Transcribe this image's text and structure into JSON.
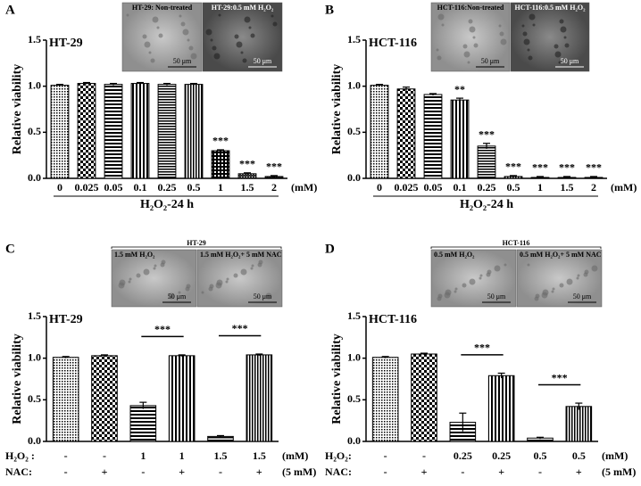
{
  "chart_data": [
    {
      "type": "bar",
      "panel": "A",
      "cell_line": "HT-29",
      "y_label": "Relative viability",
      "x_label": "H₂O₂-24 h",
      "unit": "(mM)",
      "categories": [
        "0",
        "0.025",
        "0.05",
        "0.1",
        "0.25",
        "0.5",
        "1",
        "1.5",
        "2"
      ],
      "values": [
        1.01,
        1.03,
        1.02,
        1.03,
        1.02,
        1.02,
        0.3,
        0.05,
        0.02
      ],
      "errors": [
        0.01,
        0.01,
        0.01,
        0.01,
        0.01,
        0.01,
        0.01,
        0.01,
        0.01
      ],
      "annotations": [
        null,
        null,
        null,
        null,
        null,
        null,
        "***",
        "***",
        "***"
      ],
      "color": "#000000",
      "ylim": [
        0,
        1.5
      ],
      "yticks": [
        {
          "value": 0,
          "label": "0.0"
        },
        0.5,
        {
          "value": 1,
          "label": "1.0"
        },
        1.5
      ],
      "inset": {
        "labels": [
          "HT-29: Non-treated",
          "HT-29:0.5 mM H₂O₂"
        ],
        "scale_bar": "50 μm"
      }
    },
    {
      "type": "bar",
      "panel": "B",
      "cell_line": "HCT-116",
      "y_label": "Relative viability",
      "x_label": "H₂O₂-24 h",
      "unit": "(mM)",
      "categories": [
        "0",
        "0.025",
        "0.05",
        "0.1",
        "0.25",
        "0.5",
        "1",
        "1.5",
        "2"
      ],
      "values": [
        1.01,
        0.97,
        0.91,
        0.85,
        0.35,
        0.02,
        0.01,
        0.01,
        0.01
      ],
      "errors": [
        0.01,
        0.02,
        0.01,
        0.02,
        0.03,
        0.01,
        0.01,
        0.01,
        0.01
      ],
      "annotations": [
        null,
        null,
        null,
        "**",
        "***",
        "***",
        "***",
        "***",
        "***"
      ],
      "color": "#000000",
      "ylim": [
        0,
        1.5
      ],
      "yticks": [
        {
          "value": 0,
          "label": "0.0"
        },
        0.5,
        {
          "value": 1,
          "label": "1.0"
        },
        1.5
      ],
      "inset": {
        "labels": [
          "HCT-116:Non-treated",
          "HCT-116:0.5 mM H₂O₂"
        ],
        "scale_bar": "50 μm"
      }
    },
    {
      "type": "bar",
      "panel": "C",
      "cell_line": "HT-29",
      "y_label": "Relative viability",
      "rows": [
        {
          "label": "H₂O₂ :",
          "values": [
            "-",
            "-",
            "1",
            "1",
            "1.5",
            "1.5"
          ],
          "unit": "(mM)"
        },
        {
          "label": "NAC:",
          "values": [
            "-",
            "+",
            "-",
            "+",
            "-",
            "+"
          ],
          "unit": "(5 mM)"
        }
      ],
      "values": [
        1.01,
        1.03,
        0.43,
        1.03,
        0.06,
        1.04
      ],
      "errors": [
        0.01,
        0.01,
        0.04,
        0.01,
        0.01,
        0.01
      ],
      "bracket_labels": [
        null,
        null,
        "***",
        null,
        "***",
        null
      ],
      "color": "#000000",
      "ylim": [
        0,
        1.5
      ],
      "yticks": [
        {
          "value": 0,
          "label": "0.0"
        },
        0.5,
        {
          "value": 1,
          "label": "1.0"
        },
        1.5
      ],
      "inset": {
        "title": "HT-29",
        "labels": [
          "1.5 mM H₂O₂",
          "1.5 mM H₂O₂+ 5 mM NAC"
        ],
        "scale_bar": "50 μm"
      }
    },
    {
      "type": "bar",
      "panel": "D",
      "cell_line": "HCT-116",
      "y_label": "Relative viability",
      "rows": [
        {
          "label": "H₂O₂:",
          "values": [
            "-",
            "-",
            "0.25",
            "0.25",
            "0.5",
            "0.5"
          ],
          "unit": "(mM)"
        },
        {
          "label": "NAC:",
          "values": [
            "-",
            "+",
            "-",
            "+",
            "-",
            "+"
          ],
          "unit": "(5 mM)"
        }
      ],
      "values": [
        1.01,
        1.05,
        0.23,
        0.79,
        0.04,
        0.42
      ],
      "errors": [
        0.01,
        0.01,
        0.11,
        0.03,
        0.01,
        0.04
      ],
      "bracket_labels": [
        null,
        null,
        "***",
        null,
        "***",
        null
      ],
      "color": "#000000",
      "ylim": [
        0,
        1.5
      ],
      "yticks": [
        {
          "value": 0,
          "label": "0.0"
        },
        0.5,
        {
          "value": 1,
          "label": "1.0"
        },
        1.5
      ],
      "inset": {
        "title": "HCT-116",
        "labels": [
          "0.5 mM H₂O₂",
          "0.5 mM H₂O₂+ 5 mM NAC"
        ],
        "scale_bar": "50 μm"
      }
    }
  ]
}
